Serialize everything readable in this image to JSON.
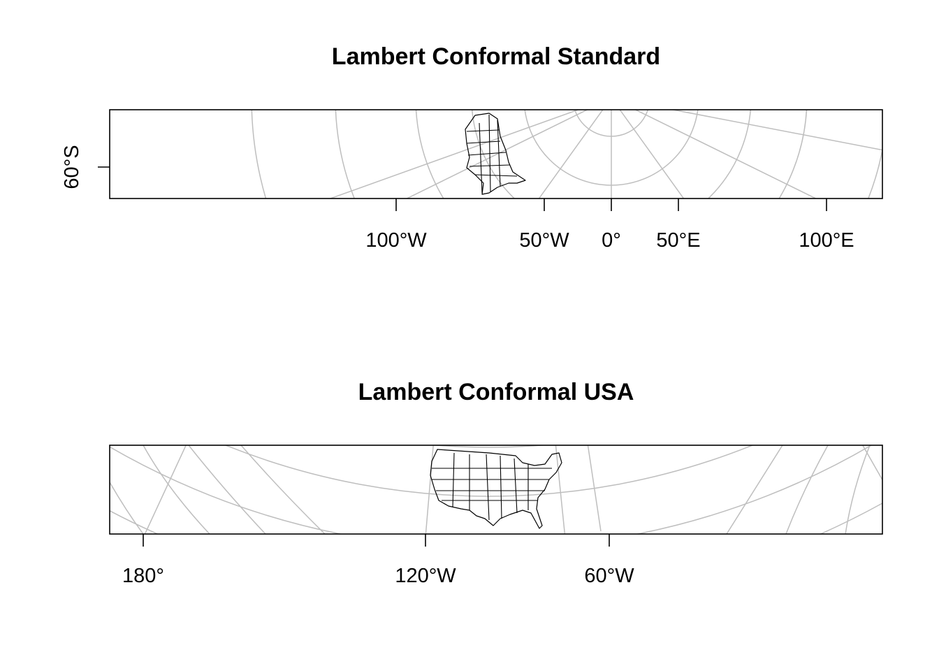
{
  "maps": [
    {
      "title": "Lambert Conformal Standard",
      "bottom_ticks": [
        "100°W",
        "50°W",
        "0°",
        "50°E",
        "100°E"
      ],
      "left_ticks": [
        "60°S"
      ]
    },
    {
      "title": "Lambert Conformal USA",
      "bottom_ticks": [
        "180°",
        "120°W",
        "60°W"
      ],
      "left_ticks": []
    }
  ],
  "colors": {
    "frame": "#000000",
    "graticule": "#bebebe",
    "boundaries": "#000000"
  }
}
